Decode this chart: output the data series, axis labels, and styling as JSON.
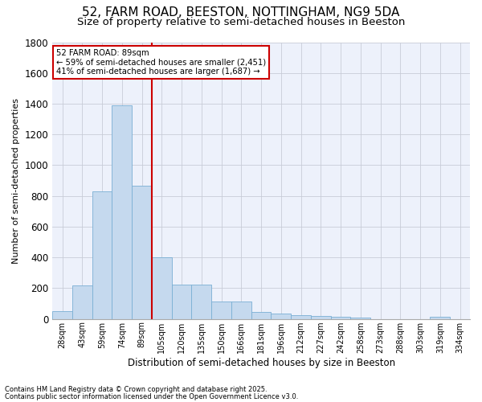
{
  "title1": "52, FARM ROAD, BEESTON, NOTTINGHAM, NG9 5DA",
  "title2": "Size of property relative to semi-detached houses in Beeston",
  "xlabel": "Distribution of semi-detached houses by size in Beeston",
  "ylabel": "Number of semi-detached properties",
  "footnote1": "Contains HM Land Registry data © Crown copyright and database right 2025.",
  "footnote2": "Contains public sector information licensed under the Open Government Licence v3.0.",
  "bin_labels": [
    "28sqm",
    "43sqm",
    "59sqm",
    "74sqm",
    "89sqm",
    "105sqm",
    "120sqm",
    "135sqm",
    "150sqm",
    "166sqm",
    "181sqm",
    "196sqm",
    "212sqm",
    "227sqm",
    "242sqm",
    "258sqm",
    "273sqm",
    "288sqm",
    "303sqm",
    "319sqm",
    "334sqm"
  ],
  "bar_values": [
    50,
    220,
    830,
    1390,
    865,
    400,
    225,
    225,
    115,
    115,
    45,
    35,
    25,
    20,
    15,
    10,
    0,
    0,
    0,
    15,
    0
  ],
  "bar_color": "#c5d9ee",
  "bar_edge_color": "#7aafd4",
  "vline_color": "#cc0000",
  "vline_bin_index": 4,
  "annotation_title": "52 FARM ROAD: 89sqm",
  "annotation_line1": "← 59% of semi-detached houses are smaller (2,451)",
  "annotation_line2": "41% of semi-detached houses are larger (1,687) →",
  "ylim": [
    0,
    1800
  ],
  "yticks": [
    0,
    200,
    400,
    600,
    800,
    1000,
    1200,
    1400,
    1600,
    1800
  ],
  "bg_color": "#edf1fb",
  "grid_color": "#c8ccd8",
  "title1_fontsize": 11,
  "title2_fontsize": 9.5,
  "xlabel_fontsize": 8.5,
  "ylabel_fontsize": 8,
  "footnote_fontsize": 6.0
}
